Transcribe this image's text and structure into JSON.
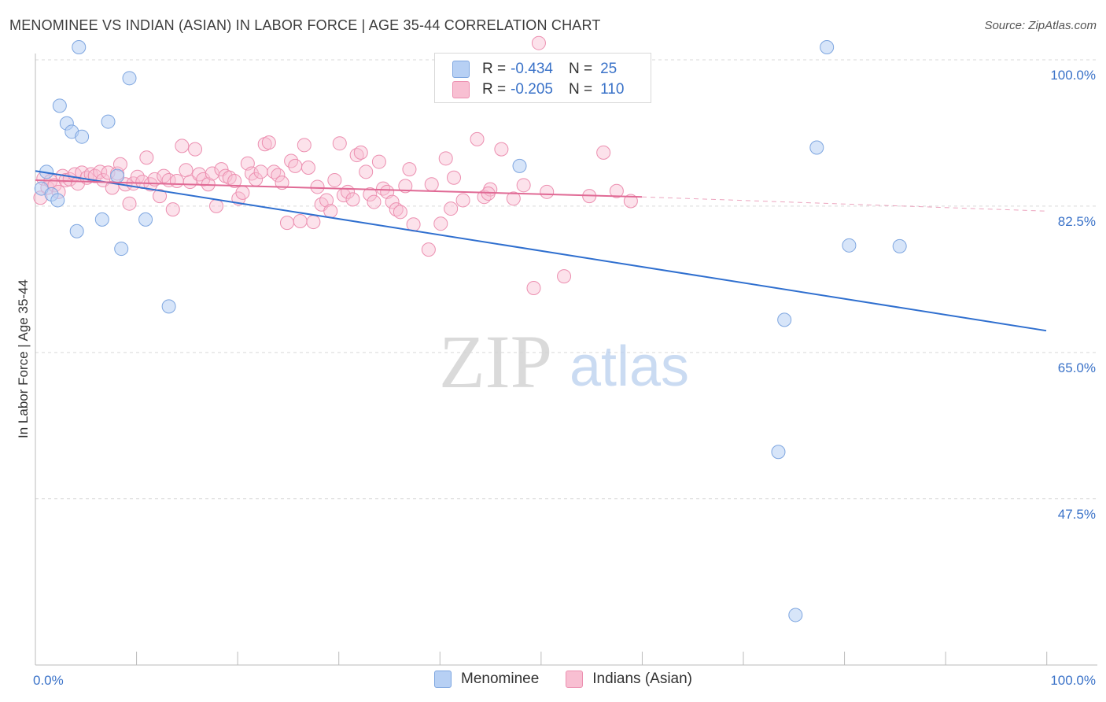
{
  "title": "MENOMINEE VS INDIAN (ASIAN) IN LABOR FORCE | AGE 35-44 CORRELATION CHART",
  "source": "Source: ZipAtlas.com",
  "watermark": {
    "zip": "ZIP",
    "atlas": "atlas"
  },
  "legend": {
    "rows": [
      {
        "r_label": "R =",
        "r_value": "-0.434",
        "n_label": "N =",
        "n_value": "25"
      },
      {
        "r_label": "R =",
        "r_value": "-0.205",
        "n_label": "N =",
        "n_value": "110"
      }
    ]
  },
  "bottom_legend": {
    "series1": "Menominee",
    "series2": "Indians (Asian)"
  },
  "colors": {
    "blue_fill": "#b7d0f4",
    "blue_stroke": "#7ea6e0",
    "blue_line": "#2f6fcf",
    "pink_fill": "#f8bfd2",
    "pink_stroke": "#ec8fb0",
    "pink_line": "#e06a95",
    "axis_label": "#3a72c8",
    "grid": "#d9d9d9"
  },
  "chart_data": {
    "type": "scatter",
    "title": "MENOMINEE VS INDIAN (ASIAN) IN LABOR FORCE | AGE 35-44 CORRELATION CHART",
    "xlabel": "",
    "ylabel": "In Labor Force | Age 35-44",
    "xlim": [
      0,
      100
    ],
    "ylim": [
      29.5,
      101.5
    ],
    "x_tick_labels": [
      "0.0%",
      "100.0%"
    ],
    "y_ticks": [
      {
        "value": 100.0,
        "label": "100.0%"
      },
      {
        "value": 82.5,
        "label": "82.5%"
      },
      {
        "value": 65.0,
        "label": "65.0%"
      },
      {
        "value": 47.5,
        "label": "47.5%"
      }
    ],
    "series": [
      {
        "name": "Menominee",
        "R": -0.434,
        "N": 25,
        "trend": {
          "x0": 0,
          "y0": 86.7,
          "x1": 100,
          "y1": 67.6
        },
        "points": [
          [
            0.6,
            84.6
          ],
          [
            1.1,
            86.6
          ],
          [
            1.6,
            83.9
          ],
          [
            2.2,
            83.2
          ],
          [
            2.4,
            94.5
          ],
          [
            3.1,
            92.4
          ],
          [
            3.6,
            91.4
          ],
          [
            4.1,
            79.5
          ],
          [
            4.6,
            90.8
          ],
          [
            4.3,
            101.5
          ],
          [
            6.6,
            80.9
          ],
          [
            7.2,
            92.6
          ],
          [
            8.1,
            86.1
          ],
          [
            8.5,
            77.4
          ],
          [
            9.3,
            97.8
          ],
          [
            10.9,
            80.9
          ],
          [
            13.2,
            70.5
          ],
          [
            73.5,
            53.1
          ],
          [
            74.1,
            68.9
          ],
          [
            75.2,
            33.6
          ],
          [
            77.3,
            89.5
          ],
          [
            78.3,
            101.5
          ],
          [
            80.5,
            77.8
          ],
          [
            85.5,
            77.7
          ],
          [
            47.9,
            87.3
          ]
        ]
      },
      {
        "name": "Indians (Asian)",
        "R": -0.205,
        "N": 110,
        "trend": {
          "x0": 0,
          "y0": 85.6,
          "x1": 60,
          "y1": 83.6
        },
        "trend_dashed": {
          "x0": 60,
          "y0": 83.6,
          "x1": 100,
          "y1": 81.9
        },
        "points": [
          [
            0.5,
            83.5
          ],
          [
            0.8,
            85.8
          ],
          [
            1.2,
            84.7
          ],
          [
            1.5,
            85.5
          ],
          [
            1.9,
            85.0
          ],
          [
            2.3,
            84.2
          ],
          [
            2.7,
            86.1
          ],
          [
            3.0,
            85.6
          ],
          [
            3.4,
            85.7
          ],
          [
            3.9,
            86.3
          ],
          [
            4.2,
            85.2
          ],
          [
            4.6,
            86.5
          ],
          [
            5.1,
            85.9
          ],
          [
            5.5,
            86.3
          ],
          [
            5.9,
            86.1
          ],
          [
            6.4,
            86.6
          ],
          [
            6.7,
            85.6
          ],
          [
            7.2,
            86.5
          ],
          [
            7.6,
            84.7
          ],
          [
            8.1,
            86.4
          ],
          [
            8.4,
            87.5
          ],
          [
            8.9,
            85.1
          ],
          [
            9.3,
            82.8
          ],
          [
            9.7,
            85.2
          ],
          [
            10.1,
            86.0
          ],
          [
            10.6,
            85.4
          ],
          [
            11.0,
            88.3
          ],
          [
            11.4,
            85.1
          ],
          [
            11.8,
            85.7
          ],
          [
            12.3,
            83.7
          ],
          [
            12.7,
            86.1
          ],
          [
            13.2,
            85.6
          ],
          [
            13.6,
            82.1
          ],
          [
            14.0,
            85.5
          ],
          [
            14.5,
            89.7
          ],
          [
            14.9,
            86.8
          ],
          [
            15.3,
            85.4
          ],
          [
            15.8,
            89.3
          ],
          [
            16.2,
            86.3
          ],
          [
            16.6,
            85.7
          ],
          [
            17.1,
            85.1
          ],
          [
            17.5,
            86.4
          ],
          [
            17.9,
            82.5
          ],
          [
            18.4,
            86.9
          ],
          [
            18.8,
            86.1
          ],
          [
            19.2,
            85.9
          ],
          [
            19.7,
            85.5
          ],
          [
            20.1,
            83.4
          ],
          [
            20.5,
            84.1
          ],
          [
            21.0,
            87.6
          ],
          [
            21.4,
            86.4
          ],
          [
            21.8,
            85.7
          ],
          [
            22.3,
            86.6
          ],
          [
            22.7,
            89.9
          ],
          [
            23.1,
            90.1
          ],
          [
            23.6,
            86.6
          ],
          [
            24.0,
            86.2
          ],
          [
            24.4,
            85.3
          ],
          [
            24.9,
            80.5
          ],
          [
            25.3,
            87.9
          ],
          [
            25.7,
            87.3
          ],
          [
            26.2,
            80.7
          ],
          [
            26.6,
            89.8
          ],
          [
            27.0,
            87.1
          ],
          [
            27.5,
            80.6
          ],
          [
            27.9,
            84.8
          ],
          [
            28.3,
            82.7
          ],
          [
            28.8,
            83.2
          ],
          [
            29.2,
            81.9
          ],
          [
            29.6,
            85.6
          ],
          [
            30.1,
            90.0
          ],
          [
            30.5,
            83.8
          ],
          [
            30.9,
            84.2
          ],
          [
            31.4,
            83.3
          ],
          [
            31.8,
            88.6
          ],
          [
            32.2,
            88.9
          ],
          [
            32.7,
            86.6
          ],
          [
            33.1,
            83.9
          ],
          [
            33.5,
            83.0
          ],
          [
            34.0,
            87.8
          ],
          [
            34.4,
            84.6
          ],
          [
            34.8,
            84.2
          ],
          [
            35.3,
            83.0
          ],
          [
            35.7,
            82.1
          ],
          [
            36.1,
            81.8
          ],
          [
            36.6,
            84.9
          ],
          [
            37.0,
            86.9
          ],
          [
            37.4,
            80.3
          ],
          [
            38.9,
            77.3
          ],
          [
            39.2,
            85.1
          ],
          [
            40.1,
            80.4
          ],
          [
            40.6,
            88.2
          ],
          [
            41.1,
            82.2
          ],
          [
            41.4,
            85.9
          ],
          [
            42.3,
            83.2
          ],
          [
            43.7,
            90.5
          ],
          [
            44.4,
            83.6
          ],
          [
            45.0,
            84.5
          ],
          [
            46.1,
            89.3
          ],
          [
            47.3,
            83.4
          ],
          [
            49.3,
            72.7
          ],
          [
            49.8,
            102.0
          ],
          [
            50.6,
            84.2
          ],
          [
            52.3,
            74.1
          ],
          [
            54.8,
            83.7
          ],
          [
            56.2,
            88.9
          ],
          [
            57.5,
            84.3
          ],
          [
            58.9,
            83.1
          ],
          [
            44.8,
            84.0
          ],
          [
            48.3,
            85.0
          ]
        ]
      }
    ]
  }
}
